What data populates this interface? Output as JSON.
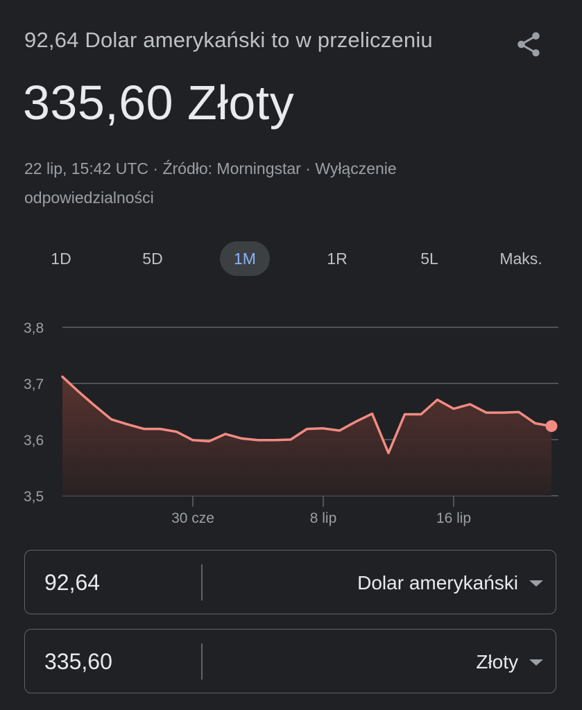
{
  "header": {
    "subtitle": "92,64 Dolar amerykański to w przeliczeniu",
    "share_icon": "share-icon",
    "result": "335,60 Złoty"
  },
  "meta": {
    "timestamp": "22 lip, 15:42 UTC",
    "separator": " · ",
    "source": "Źródło: Morningstar",
    "disclaimer": "Wyłączenie odpowiedzialności"
  },
  "ranges": [
    {
      "label": "1D",
      "active": false
    },
    {
      "label": "5D",
      "active": false
    },
    {
      "label": "1M",
      "active": true
    },
    {
      "label": "1R",
      "active": false
    },
    {
      "label": "5L",
      "active": false
    },
    {
      "label": "Maks.",
      "active": false
    }
  ],
  "chart_data": {
    "type": "area",
    "ylim": [
      3.5,
      3.8
    ],
    "y_ticks": [
      "3,8",
      "3,7",
      "3,6",
      "3,5"
    ],
    "y_tick_values": [
      3.8,
      3.7,
      3.6,
      3.5
    ],
    "x_ticks": [
      {
        "label": "30 cze",
        "index": 8
      },
      {
        "label": "8 lip",
        "index": 16
      },
      {
        "label": "16 lip",
        "index": 24
      }
    ],
    "values": [
      3.712,
      3.685,
      3.66,
      3.636,
      3.627,
      3.619,
      3.619,
      3.614,
      3.599,
      3.597,
      3.61,
      3.602,
      3.599,
      3.599,
      3.6,
      3.619,
      3.62,
      3.616,
      3.632,
      3.646,
      3.576,
      3.645,
      3.645,
      3.671,
      3.655,
      3.663,
      3.648,
      3.648,
      3.649,
      3.629,
      3.624
    ],
    "colors": {
      "line": "#f28b82",
      "grid": "#5f6368",
      "fill_top": "#5c3430",
      "fill_bottom": "#2a2223"
    }
  },
  "converter": {
    "from": {
      "amount": "92,64",
      "currency": "Dolar amerykański"
    },
    "to": {
      "amount": "335,60",
      "currency": "Złoty"
    }
  }
}
